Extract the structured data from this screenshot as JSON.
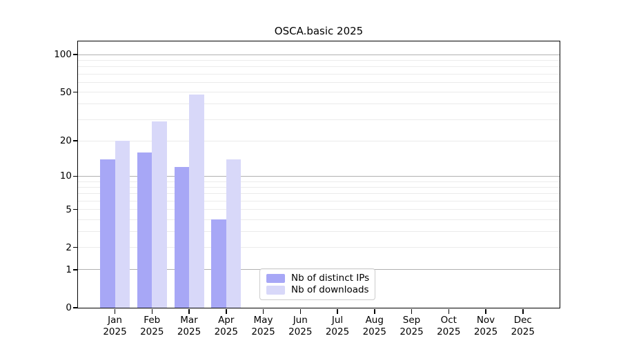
{
  "title": "OSCA.basic 2025",
  "chart_data": {
    "type": "bar",
    "title": "OSCA.basic 2025",
    "categories": [
      "Jan 2025",
      "Feb 2025",
      "Mar 2025",
      "Apr 2025",
      "May 2025",
      "Jun 2025",
      "Jul 2025",
      "Aug 2025",
      "Sep 2025",
      "Oct 2025",
      "Nov 2025",
      "Dec 2025"
    ],
    "series": [
      {
        "name": "Nb of distinct IPs",
        "color": "#a7a7f6",
        "values": [
          14,
          16,
          12,
          4,
          null,
          null,
          null,
          null,
          null,
          null,
          null,
          null
        ]
      },
      {
        "name": "Nb of downloads",
        "color": "#d8d8f9",
        "values": [
          20,
          29,
          48,
          14,
          null,
          null,
          null,
          null,
          null,
          null,
          null,
          null
        ]
      }
    ],
    "xlabel": "",
    "ylabel": "",
    "yscale": "log10(1+v)",
    "yticks": [
      0,
      1,
      2,
      5,
      10,
      20,
      50,
      100
    ],
    "major_gridlines": [
      1,
      10,
      100
    ],
    "minor_gridlines": [
      2,
      3,
      4,
      5,
      6,
      7,
      8,
      9,
      20,
      30,
      40,
      50,
      60,
      70,
      80,
      90
    ],
    "ylim": [
      0,
      128
    ],
    "grid": true,
    "legend_position": "lower center",
    "colors": {
      "grid_minor": "#ebebeb",
      "grid_major": "#b0b0b0",
      "spine": "#000000",
      "text": "#000000",
      "background": "#ffffff"
    }
  }
}
